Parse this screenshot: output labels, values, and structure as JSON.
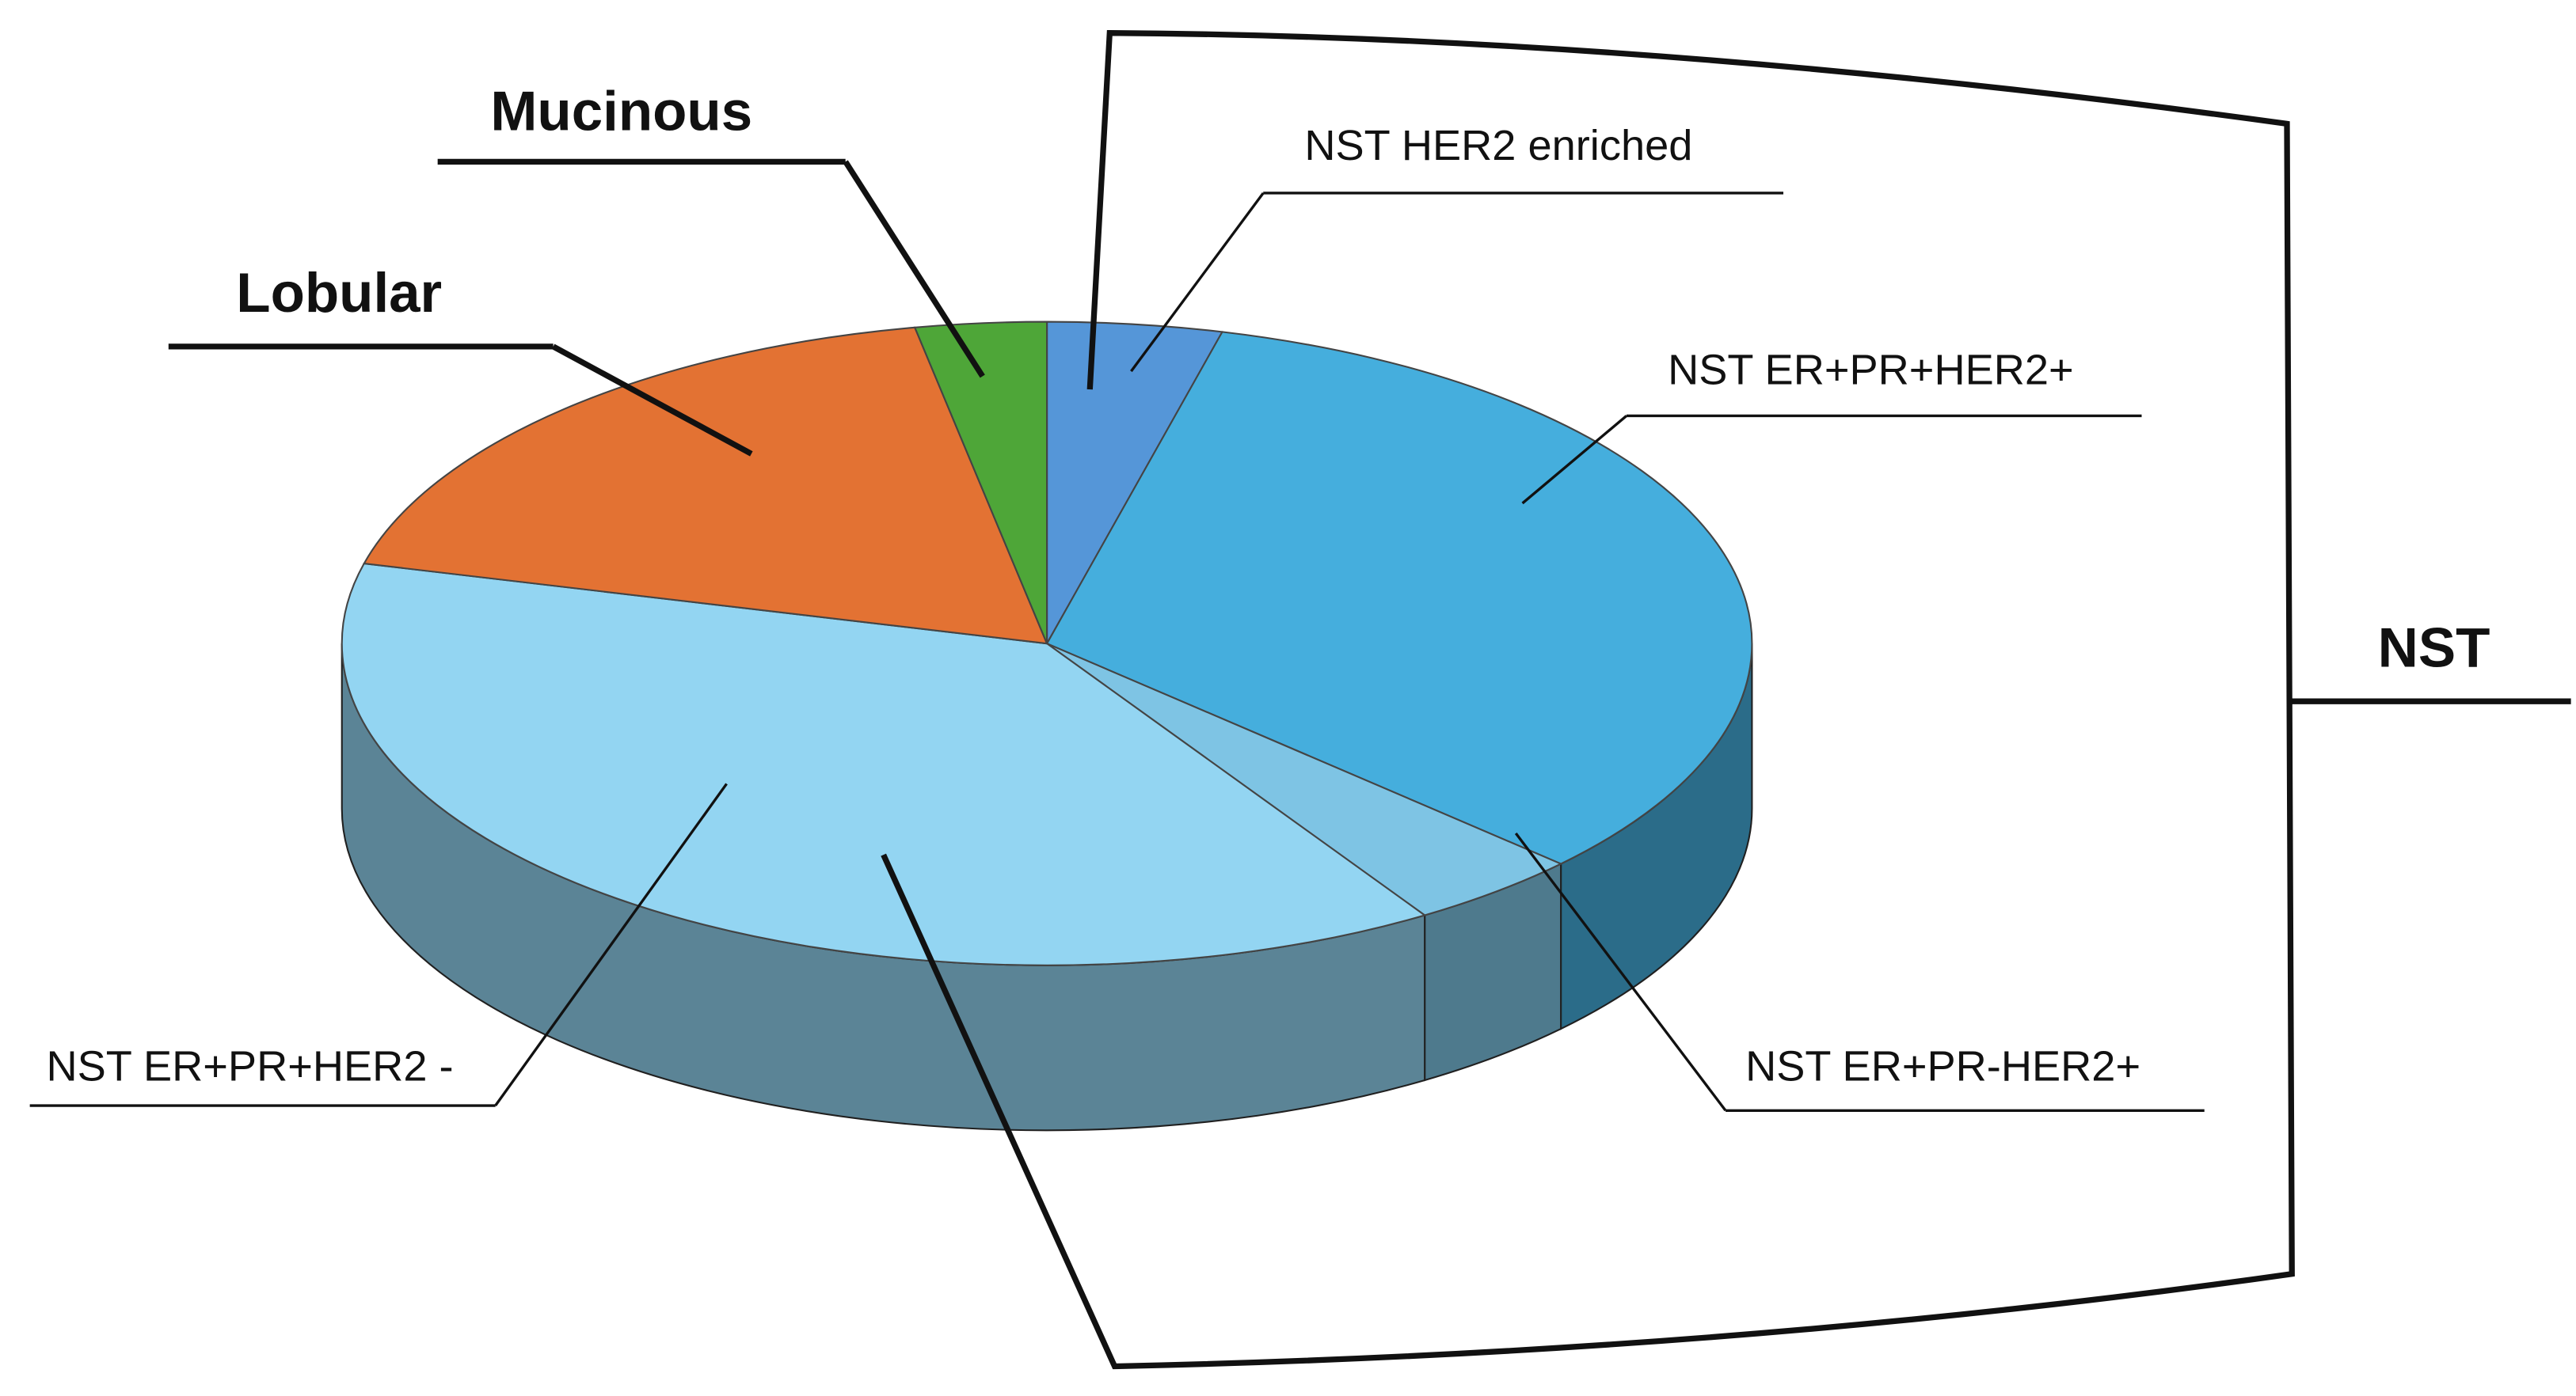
{
  "chart_data": {
    "type": "pie3d",
    "categories": [
      "NST HER2 enriched",
      "NST ER+PR+HER2+",
      "NST ER+PR-HER2+",
      "NST ER+PR+HER2 -",
      "Lobular",
      "Mucinous"
    ],
    "values": [
      4,
      33,
      4,
      38,
      18,
      3
    ],
    "colors": [
      "#5596d8",
      "#45aedd",
      "#7ec4e4",
      "#93d5f2",
      "#e37233",
      "#4ea638"
    ],
    "group_label": "NST"
  }
}
